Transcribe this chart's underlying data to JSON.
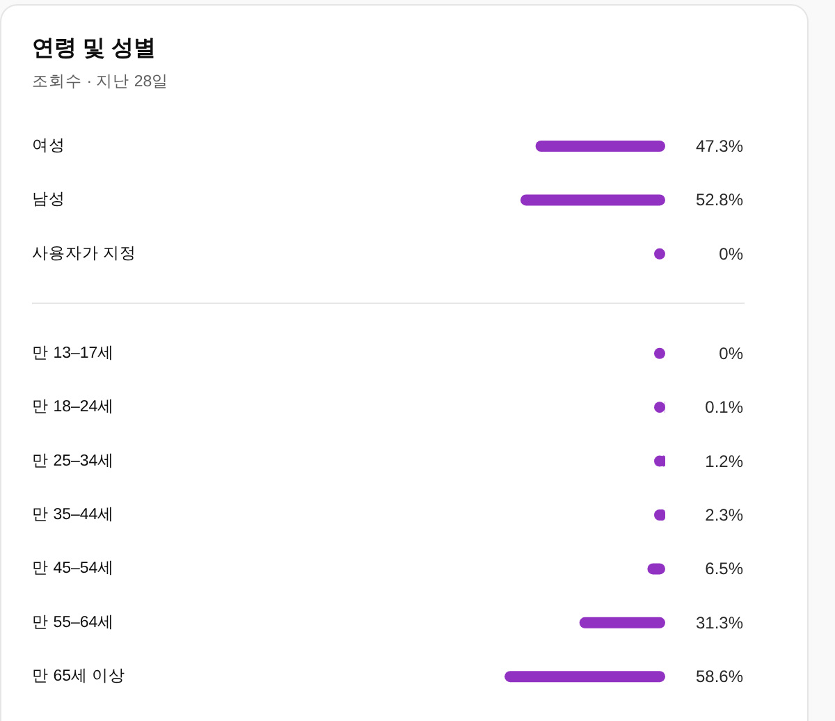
{
  "chart_data": [
    {
      "type": "bar",
      "orientation": "horizontal",
      "title": "연령 및 성별",
      "subtitle": "조회수 · 지난 28일",
      "categories": [
        "여성",
        "남성",
        "사용자가 지정"
      ],
      "values": [
        47.3,
        52.8,
        0
      ],
      "value_labels": [
        "47.3%",
        "52.8%",
        "0%"
      ],
      "color": "#9232c3"
    },
    {
      "type": "bar",
      "orientation": "horizontal",
      "categories": [
        "만 13–17세",
        "만 18–24세",
        "만 25–34세",
        "만 35–44세",
        "만 45–54세",
        "만 55–64세",
        "만 65세 이상"
      ],
      "values": [
        0,
        0.1,
        1.2,
        2.3,
        6.5,
        31.3,
        58.6
      ],
      "value_labels": [
        "0%",
        "0.1%",
        "1.2%",
        "2.3%",
        "6.5%",
        "31.3%",
        "58.6%"
      ],
      "color": "#9232c3"
    }
  ]
}
